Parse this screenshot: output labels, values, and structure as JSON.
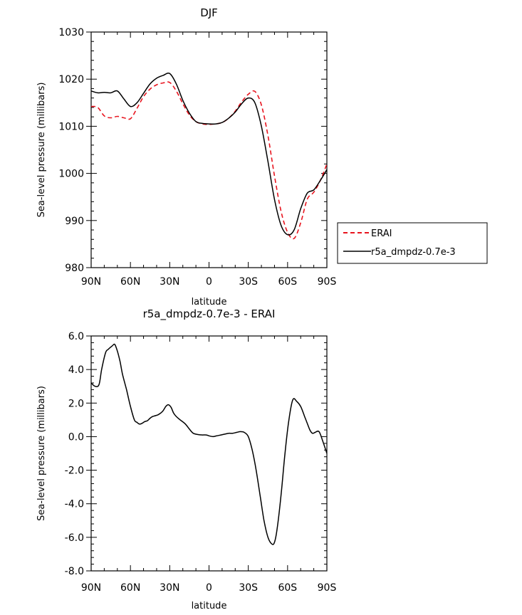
{
  "chart_data": [
    {
      "type": "line",
      "title": "DJF",
      "xlabel": "latitude",
      "ylabel": "Sea-level pressure (millibars)",
      "xlim": [
        90,
        -90
      ],
      "ylim": [
        980,
        1030
      ],
      "xticks": [
        90,
        60,
        30,
        0,
        -30,
        -60,
        -90
      ],
      "xtick_labels": [
        "90N",
        "60N",
        "30N",
        "0",
        "30S",
        "60S",
        "90S"
      ],
      "yticks": [
        980,
        990,
        1000,
        1010,
        1020,
        1030
      ],
      "ytick_labels": [
        "980",
        "990",
        "1000",
        "1010",
        "1020",
        "1030"
      ],
      "legend_position": "outside-right",
      "series": [
        {
          "name": "ERAI",
          "color": "#e8141e",
          "dash": "dashed",
          "x": [
            90,
            85,
            80,
            75,
            70,
            65,
            60,
            55,
            50,
            45,
            40,
            35,
            30,
            25,
            20,
            15,
            10,
            5,
            0,
            -5,
            -10,
            -15,
            -20,
            -25,
            -30,
            -35,
            -40,
            -45,
            -50,
            -55,
            -60,
            -65,
            -70,
            -75,
            -80,
            -85,
            -90
          ],
          "y": [
            1014.2,
            1014.0,
            1012.2,
            1011.8,
            1012.1,
            1011.8,
            1011.6,
            1013.8,
            1016.3,
            1017.9,
            1018.8,
            1019.2,
            1019.3,
            1017.5,
            1014.8,
            1012.4,
            1011.0,
            1010.5,
            1010.4,
            1010.5,
            1010.8,
            1011.7,
            1013.2,
            1015.2,
            1016.8,
            1017.4,
            1014.5,
            1008.0,
            999.5,
            992.0,
            987.5,
            986.2,
            989.5,
            994.5,
            996.0,
            998.5,
            1002.0
          ]
        },
        {
          "name": "r5a_dmpdz-0.7e-3",
          "color": "#000000",
          "dash": "solid",
          "x": [
            90,
            85,
            80,
            75,
            70,
            65,
            60,
            55,
            50,
            45,
            40,
            35,
            30,
            25,
            20,
            15,
            10,
            5,
            0,
            -5,
            -10,
            -15,
            -20,
            -25,
            -30,
            -35,
            -40,
            -45,
            -50,
            -55,
            -60,
            -65,
            -70,
            -75,
            -80,
            -85,
            -90
          ],
          "y": [
            1017.5,
            1017.1,
            1017.2,
            1017.1,
            1017.5,
            1015.8,
            1014.2,
            1015.0,
            1017.0,
            1019.0,
            1020.2,
            1020.8,
            1021.2,
            1019.0,
            1015.5,
            1012.8,
            1011.0,
            1010.6,
            1010.5,
            1010.5,
            1010.8,
            1011.7,
            1013.0,
            1014.8,
            1016.0,
            1015.0,
            1010.0,
            1002.5,
            994.5,
            989.0,
            987.0,
            988.0,
            992.5,
            995.8,
            996.5,
            998.5,
            1000.8
          ]
        }
      ]
    },
    {
      "type": "line",
      "title": "r5a_dmpdz-0.7e-3 - ERAI",
      "xlabel": "latitude",
      "ylabel": "Sea-level pressure (millibars)",
      "xlim": [
        90,
        -90
      ],
      "ylim": [
        -8,
        6
      ],
      "xticks": [
        90,
        60,
        30,
        0,
        -30,
        -60,
        -90
      ],
      "xtick_labels": [
        "90N",
        "60N",
        "30N",
        "0",
        "30S",
        "60S",
        "90S"
      ],
      "yticks": [
        -8,
        -6,
        -4,
        -2,
        0,
        2,
        4,
        6
      ],
      "ytick_labels": [
        "-8.0",
        "-6.0",
        "-4.0",
        "-2.0",
        "0.0",
        "2.0",
        "4.0",
        "6.0"
      ],
      "series": [
        {
          "color": "#000000",
          "dash": "solid",
          "x": [
            90,
            87,
            84,
            82,
            79,
            77,
            74,
            72,
            70,
            68,
            66,
            63,
            60,
            57,
            55,
            53,
            51,
            49,
            47,
            45,
            43,
            41,
            39,
            37,
            35,
            33,
            31,
            29,
            27,
            25,
            22,
            18,
            15,
            12,
            8,
            5,
            2,
            0,
            -3,
            -6,
            -9,
            -12,
            -15,
            -18,
            -21,
            -24,
            -27,
            -30,
            -33,
            -36,
            -39,
            -42,
            -45,
            -48,
            -50,
            -52,
            -55,
            -58,
            -61,
            -64,
            -67,
            -70,
            -73,
            -75,
            -77,
            -79,
            -81,
            -84,
            -87,
            -90
          ],
          "y": [
            3.2,
            3.0,
            3.1,
            4.0,
            5.0,
            5.2,
            5.4,
            5.5,
            5.1,
            4.5,
            3.7,
            2.8,
            1.8,
            1.0,
            0.85,
            0.75,
            0.8,
            0.9,
            0.95,
            1.1,
            1.2,
            1.25,
            1.3,
            1.4,
            1.55,
            1.8,
            1.9,
            1.75,
            1.4,
            1.2,
            1.0,
            0.75,
            0.45,
            0.2,
            0.12,
            0.1,
            0.1,
            0.05,
            0.0,
            0.05,
            0.1,
            0.15,
            0.2,
            0.2,
            0.25,
            0.3,
            0.25,
            0.0,
            -0.8,
            -2.0,
            -3.5,
            -5.0,
            -6.0,
            -6.4,
            -6.3,
            -5.5,
            -3.5,
            -1.0,
            1.0,
            2.2,
            2.1,
            1.8,
            1.2,
            0.8,
            0.4,
            0.2,
            0.25,
            0.3,
            -0.3,
            -1.0
          ]
        }
      ]
    }
  ]
}
